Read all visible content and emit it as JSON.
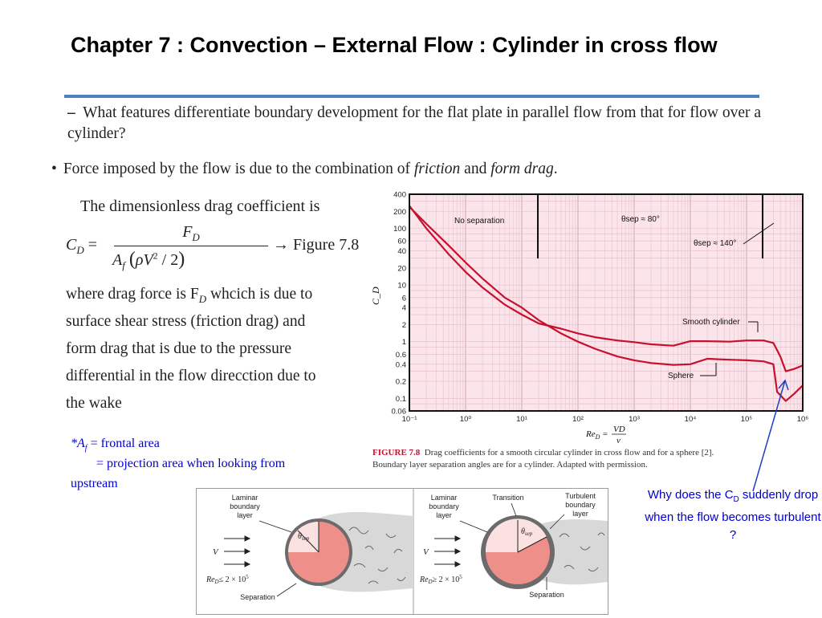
{
  "slide": {
    "title": "Chapter 7  : Convection – External Flow : Cylinder in cross flow",
    "question_dash": "–",
    "question": "What features differentiate boundary development for the flat plate in parallel flow from that for flow over a cylinder?",
    "bullet": "•",
    "force_pre": "Force imposed by the flow is due to the combination of ",
    "force_friction": "friction",
    "force_and": " and ",
    "force_form": "form drag",
    "force_end": ".",
    "drag_intro": "The dimensionless drag coefficient is",
    "eq_lhs": "C",
    "eq_lhs_sub": "D",
    "eq_num": "F",
    "eq_num_sub": "D",
    "eq_den_a": "A",
    "eq_den_a_sub": "f",
    "eq_den_rho": "ρV",
    "eq_den_sq": "2",
    "eq_den_div": "/ 2",
    "eq_ref": "→ Figure 7.8",
    "para_lines": [
      "where drag force is F",
      "surface shear stress (friction drag) and",
      "form drag that is due to the pressure",
      "differential in the flow direcction due to",
      "the wake"
    ],
    "para_sub": "D",
    "para_tail": " whcich is due to",
    "af_label": "*A",
    "af_sub": "f",
    "af_eq": " = frontal area",
    "af_proj": "= projection area when looking from",
    "af_up": "upstream",
    "annot_pre": "Why does the C",
    "annot_sub": "D",
    "annot_post": " suddenly drop when the flow becomes turbulent ?"
  },
  "chart_data": {
    "type": "line",
    "xscale": "log",
    "yscale": "log",
    "xlim": [
      0.1,
      1000000
    ],
    "ylim": [
      0.06,
      400
    ],
    "xlabel": "Re_D = VD/ν",
    "ylabel": "C_D",
    "x_ticks": [
      "10⁻¹",
      "10⁰",
      "10¹",
      "10²",
      "10³",
      "10⁴",
      "10⁵",
      "10⁶"
    ],
    "y_ticks": [
      "400",
      "200",
      "100",
      "60",
      "40",
      "20",
      "10",
      "6",
      "4",
      "2",
      "1",
      "0.6",
      "0.4",
      "0.2",
      "0.1",
      "0.06"
    ],
    "grid": true,
    "annotations": [
      "No separation",
      "θsep ≈ 80°",
      "θsep ≈ 140°",
      "Smooth cylinder",
      "Sphere"
    ],
    "series": [
      {
        "name": "Smooth cylinder",
        "x": [
          0.1,
          0.2,
          0.5,
          1,
          2,
          5,
          10,
          20,
          50,
          100,
          200,
          500,
          1000,
          2000,
          5000,
          10000,
          20000,
          50000,
          100000,
          200000,
          300000,
          400000,
          500000,
          700000,
          1000000
        ],
        "y": [
          250,
          100,
          35,
          17,
          9,
          4.5,
          3.0,
          2.1,
          1.7,
          1.4,
          1.2,
          1.05,
          0.98,
          0.9,
          0.85,
          1.02,
          1.02,
          1.0,
          1.05,
          1.05,
          0.95,
          0.55,
          0.3,
          0.33,
          0.38
        ]
      },
      {
        "name": "Sphere",
        "x": [
          0.1,
          0.2,
          0.5,
          1,
          2,
          5,
          10,
          20,
          50,
          100,
          200,
          500,
          1000,
          2000,
          5000,
          10000,
          20000,
          50000,
          100000,
          200000,
          300000,
          350000,
          500000,
          700000,
          1000000
        ],
        "y": [
          240,
          120,
          50,
          25,
          13,
          6,
          4,
          2.4,
          1.4,
          1.0,
          0.75,
          0.55,
          0.47,
          0.42,
          0.39,
          0.4,
          0.5,
          0.48,
          0.47,
          0.45,
          0.4,
          0.13,
          0.09,
          0.12,
          0.17
        ]
      }
    ]
  },
  "figure_caption": {
    "lead": "FIGURE 7.8",
    "text1": "Drag coefficients for a smooth circular cylinder in cross flow and for a sphere [2].",
    "text2": "Boundary layer separation angles are for a cylinder. Adapted with permission."
  },
  "bottom_figure": {
    "left": {
      "label_laminar": [
        "Laminar",
        "boundary",
        "layer"
      ],
      "label_v": "V",
      "label_re": "Re",
      "re_sub": "D",
      "re_cond": "≤ 2 × 10",
      "re_exp": "5",
      "label_sep": "Separation",
      "theta": "θ",
      "theta_sub": "sep"
    },
    "right": {
      "label_laminar": [
        "Laminar",
        "boundary",
        "layer"
      ],
      "label_transition": "Transition",
      "label_turb": [
        "Turbulent",
        "boundary",
        "layer"
      ],
      "label_v": "V",
      "label_re": "Re",
      "re_sub": "D",
      "re_cond": "≥ 2 × 10",
      "re_exp": "5",
      "label_sep": "Separation",
      "theta": "θ",
      "theta_sub": "sep"
    }
  },
  "colors": {
    "accent_rule": "#4f81bd",
    "annotation_blue": "#0000cc",
    "curve": "#c8102e",
    "plot_bg": "#fbe4ea",
    "disk": "#ee8f8a"
  }
}
